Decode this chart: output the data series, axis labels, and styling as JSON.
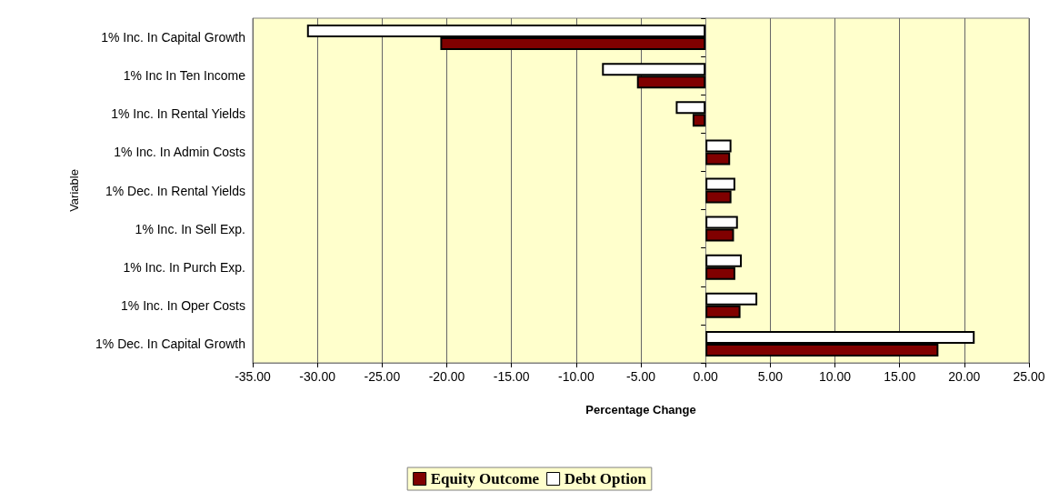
{
  "chart_data": {
    "type": "bar",
    "orientation": "horizontal",
    "xlabel": "Percentage Change",
    "ylabel": "Variable",
    "categories": [
      "1% Inc. In Capital Growth",
      "1% Inc In Ten Income",
      "1% Inc. In Rental Yields",
      "1% Inc. In Admin Costs",
      "1% Dec. In Rental Yields",
      "1% Inc. In Sell Exp.",
      "1% Inc. In Purch Exp.",
      "1% Inc. In Oper Costs",
      "1% Dec. In Capital Growth"
    ],
    "series": [
      {
        "name": "Equity Outcome",
        "color": "#800000",
        "values": [
          -20.5,
          -5.3,
          -1.0,
          1.9,
          2.0,
          2.2,
          2.3,
          2.7,
          18.0
        ]
      },
      {
        "name": "Debt Option",
        "color": "#ffffff",
        "values": [
          -30.8,
          -8.0,
          -2.3,
          2.0,
          2.3,
          2.5,
          2.8,
          4.0,
          20.8
        ]
      }
    ],
    "xlim": [
      -35,
      25
    ],
    "xticks": [
      {
        "value": -35,
        "label": "-35.00"
      },
      {
        "value": -30,
        "label": "-30.00"
      },
      {
        "value": -25,
        "label": "-25.00"
      },
      {
        "value": -20,
        "label": "-20.00"
      },
      {
        "value": -15,
        "label": "-15.00"
      },
      {
        "value": -10,
        "label": "-10.00"
      },
      {
        "value": -5,
        "label": "-5.00"
      },
      {
        "value": 0,
        "label": "0.00"
      },
      {
        "value": 5,
        "label": "5.00"
      },
      {
        "value": 10,
        "label": "10.00"
      },
      {
        "value": 15,
        "label": "15.00"
      },
      {
        "value": 20,
        "label": "20.00"
      },
      {
        "value": 25,
        "label": "25.00"
      }
    ],
    "grid": "x",
    "legend": "bottom"
  }
}
